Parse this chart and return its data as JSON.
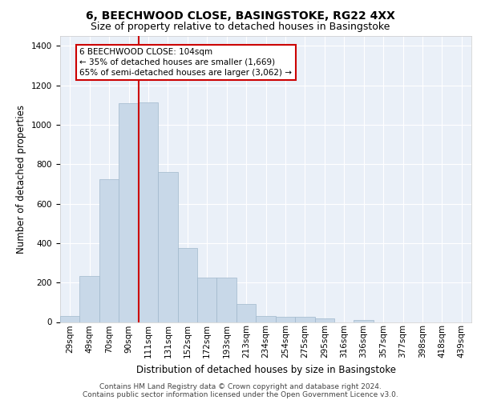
{
  "title1": "6, BEECHWOOD CLOSE, BASINGSTOKE, RG22 4XX",
  "title2": "Size of property relative to detached houses in Basingstoke",
  "xlabel": "Distribution of detached houses by size in Basingstoke",
  "ylabel": "Number of detached properties",
  "footer1": "Contains HM Land Registry data © Crown copyright and database right 2024.",
  "footer2": "Contains public sector information licensed under the Open Government Licence v3.0.",
  "bar_labels": [
    "29sqm",
    "49sqm",
    "70sqm",
    "90sqm",
    "111sqm",
    "131sqm",
    "152sqm",
    "172sqm",
    "193sqm",
    "213sqm",
    "234sqm",
    "254sqm",
    "275sqm",
    "295sqm",
    "316sqm",
    "336sqm",
    "357sqm",
    "377sqm",
    "398sqm",
    "418sqm",
    "439sqm"
  ],
  "bar_values": [
    30,
    235,
    725,
    1110,
    1115,
    760,
    375,
    225,
    225,
    90,
    30,
    25,
    25,
    18,
    0,
    12,
    0,
    0,
    0,
    0,
    0
  ],
  "bar_color": "#c8d8e8",
  "bar_edgecolor": "#a0b8cc",
  "annotation_text": "6 BEECHWOOD CLOSE: 104sqm\n← 35% of detached houses are smaller (1,669)\n65% of semi-detached houses are larger (3,062) →",
  "annotation_box_color": "#ffffff",
  "annotation_border_color": "#cc0000",
  "vline_color": "#cc0000",
  "vline_x_index": 3.5,
  "ylim": [
    0,
    1450
  ],
  "yticks": [
    0,
    200,
    400,
    600,
    800,
    1000,
    1200,
    1400
  ],
  "background_color": "#eaf0f8",
  "grid_color": "#ffffff",
  "title1_fontsize": 10,
  "title2_fontsize": 9,
  "xlabel_fontsize": 8.5,
  "ylabel_fontsize": 8.5,
  "footer_fontsize": 6.5,
  "tick_fontsize": 7.5,
  "annot_fontsize": 7.5
}
